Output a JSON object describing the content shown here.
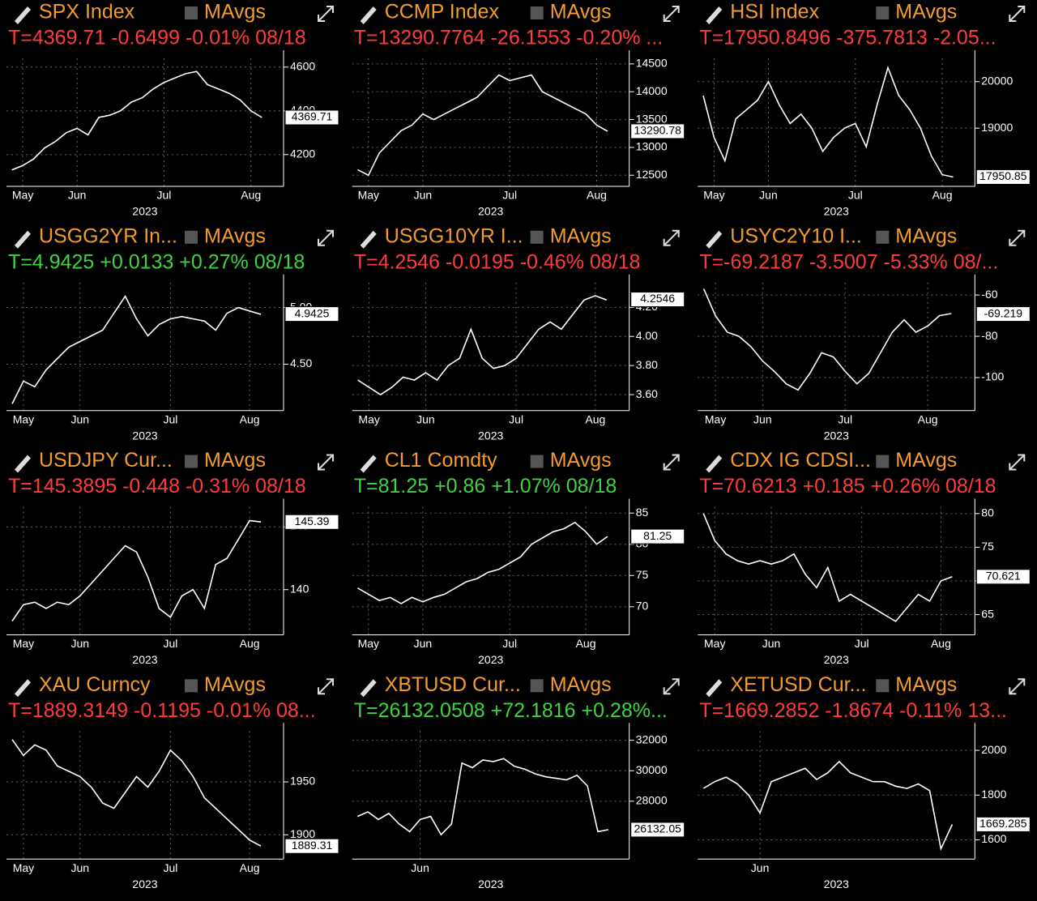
{
  "chart_data": [
    {
      "type": "line",
      "title": "SPX Index",
      "toggle": "MAvgs",
      "subtitle": "T=4369.71 -0.6499 -0.01% 08/18",
      "subtitle_color": "#ff3b3b",
      "color": "#ffffff",
      "grid": true,
      "xlabel": "2023",
      "categories": [
        null,
        "May",
        null,
        null,
        null,
        null,
        "Jun",
        null,
        null,
        null,
        null,
        null,
        null,
        null,
        "Jul",
        null,
        null,
        null,
        null,
        null,
        null,
        null,
        "Aug",
        null
      ],
      "values": [
        4130,
        4150,
        4180,
        4230,
        4260,
        4300,
        4320,
        4290,
        4370,
        4380,
        4400,
        4440,
        4460,
        4500,
        4530,
        4550,
        4570,
        4580,
        4520,
        4500,
        4480,
        4450,
        4400,
        4370
      ],
      "ylim": [
        4055,
        4640
      ],
      "yticks": [
        4200,
        4400,
        4600
      ],
      "last_value": 4369.71
    },
    {
      "type": "line",
      "title": "CCMP Index",
      "toggle": "MAvgs",
      "subtitle": "T=13290.7764 -26.1553 -0.20% ...",
      "subtitle_color": "#ff3b3b",
      "color": "#ffffff",
      "grid": true,
      "xlabel": "2023",
      "categories": [
        null,
        "May",
        null,
        null,
        null,
        null,
        "Jun",
        null,
        null,
        null,
        null,
        null,
        null,
        null,
        "Jul",
        null,
        null,
        null,
        null,
        null,
        null,
        null,
        "Aug",
        null
      ],
      "values": [
        12600,
        12500,
        12900,
        13100,
        13300,
        13400,
        13600,
        13500,
        13600,
        13700,
        13800,
        13900,
        14100,
        14300,
        14200,
        14250,
        14300,
        14000,
        13900,
        13800,
        13700,
        13600,
        13400,
        13290
      ],
      "ylim": [
        12300,
        14600
      ],
      "yticks": [
        12500,
        13000,
        13500,
        14000,
        14500
      ],
      "last_value": 13290.78
    },
    {
      "type": "line",
      "title": "HSI Index",
      "toggle": "MAvgs",
      "subtitle": "T=17950.8496 -375.7813 -2.05...",
      "subtitle_color": "#ff3b3b",
      "color": "#ffffff",
      "grid": true,
      "xlabel": "2023",
      "categories": [
        null,
        "May",
        null,
        null,
        null,
        null,
        "Jun",
        null,
        null,
        null,
        null,
        null,
        null,
        null,
        "Jul",
        null,
        null,
        null,
        null,
        null,
        null,
        null,
        "Aug",
        null
      ],
      "values": [
        19700,
        18800,
        18300,
        19200,
        19400,
        19600,
        20000,
        19500,
        19100,
        19300,
        19000,
        18500,
        18800,
        19000,
        19100,
        18600,
        19500,
        20300,
        19700,
        19400,
        19000,
        18400,
        18000,
        17950
      ],
      "ylim": [
        17750,
        20500
      ],
      "yticks": [
        19000,
        20000
      ],
      "last_value": 17950.85
    },
    {
      "type": "line",
      "title": "USGG2YR In...",
      "toggle": "MAvgs",
      "subtitle": "T=4.9425 +0.0133 +0.27% 08/18",
      "subtitle_color": "#3fd43f",
      "color": "#ffffff",
      "grid": true,
      "xlabel": "2023",
      "categories": [
        null,
        "May",
        null,
        null,
        null,
        null,
        "Jun",
        null,
        null,
        null,
        null,
        null,
        null,
        null,
        "Jul",
        null,
        null,
        null,
        null,
        null,
        null,
        "Aug",
        null
      ],
      "values": [
        4.15,
        4.35,
        4.3,
        4.45,
        4.55,
        4.65,
        4.7,
        4.75,
        4.8,
        4.95,
        5.1,
        4.9,
        4.75,
        4.85,
        4.9,
        4.92,
        4.9,
        4.88,
        4.8,
        4.95,
        5.0,
        4.97,
        4.94
      ],
      "ylim": [
        4.09,
        5.22
      ],
      "yticks": [
        {
          "value": 4.5,
          "label": "4.50"
        },
        {
          "value": 5,
          "label": "5.00"
        }
      ],
      "last_value": 4.9425
    },
    {
      "type": "line",
      "title": "USGG10YR I...",
      "toggle": "MAvgs",
      "subtitle": "T=4.2546 -0.0195 -0.46% 08/18",
      "subtitle_color": "#ff3b3b",
      "color": "#ffffff",
      "grid": true,
      "xlabel": "2023",
      "categories": [
        null,
        "May",
        null,
        null,
        null,
        null,
        "Jun",
        null,
        null,
        null,
        null,
        null,
        null,
        null,
        "Jul",
        null,
        null,
        null,
        null,
        null,
        null,
        "Aug",
        null
      ],
      "values": [
        3.7,
        3.65,
        3.6,
        3.65,
        3.72,
        3.7,
        3.75,
        3.7,
        3.8,
        3.85,
        4.05,
        3.85,
        3.78,
        3.8,
        3.85,
        3.95,
        4.05,
        4.1,
        4.05,
        4.15,
        4.25,
        4.28,
        4.25
      ],
      "ylim": [
        3.49,
        4.37
      ],
      "yticks": [
        {
          "value": 3.6,
          "label": "3.60"
        },
        {
          "value": 3.8,
          "label": "3.80"
        },
        {
          "value": 4,
          "label": "4.00"
        },
        {
          "value": 4.2,
          "label": "4.20"
        }
      ],
      "last_value": 4.2546
    },
    {
      "type": "line",
      "title": "USYC2Y10 I...",
      "toggle": "MAvgs",
      "subtitle": "T=-69.2187 -3.5007 -5.33% 08/...",
      "subtitle_color": "#ff3b3b",
      "color": "#ffffff",
      "grid": true,
      "xlabel": "2023",
      "categories": [
        null,
        "May",
        null,
        null,
        null,
        "Jun",
        null,
        null,
        null,
        null,
        null,
        null,
        "Jul",
        null,
        null,
        null,
        null,
        null,
        null,
        "Aug",
        null,
        null
      ],
      "values": [
        -57,
        -70,
        -78,
        -80,
        -85,
        -92,
        -97,
        -103,
        -106,
        -98,
        -88,
        -90,
        -97,
        -103,
        -98,
        -88,
        -78,
        -72,
        -78,
        -75,
        -70,
        -69
      ],
      "ylim": [
        -116,
        -54
      ],
      "yticks": [
        -100,
        -80,
        -60
      ],
      "last_value": -69.219
    },
    {
      "type": "line",
      "title": "USDJPY Cur...",
      "toggle": "MAvgs",
      "subtitle": "T=145.3895 -0.448 -0.31% 08/18",
      "subtitle_color": "#ff3b3b",
      "color": "#ffffff",
      "grid": true,
      "xlabel": "2023",
      "categories": [
        null,
        "May",
        null,
        null,
        null,
        null,
        "Jun",
        null,
        null,
        null,
        null,
        null,
        null,
        null,
        "Jul",
        null,
        null,
        null,
        null,
        null,
        null,
        "Aug",
        null
      ],
      "values": [
        137.5,
        138.8,
        139,
        138.5,
        139,
        138.8,
        139.5,
        140.5,
        141.5,
        142.5,
        143.5,
        143,
        141,
        138.5,
        137.8,
        139.5,
        140,
        138.5,
        142,
        142.5,
        144,
        145.5,
        145.39
      ],
      "ylim": [
        136.4,
        146.6
      ],
      "yticks": [
        140,
        145
      ],
      "last_value": 145.39
    },
    {
      "type": "line",
      "title": "CL1 Comdty",
      "toggle": "MAvgs",
      "subtitle": "T=81.25 +0.86 +1.07% 08/18",
      "subtitle_color": "#3fd43f",
      "color": "#ffffff",
      "grid": true,
      "xlabel": "2023",
      "categories": [
        null,
        "May",
        null,
        null,
        null,
        null,
        "Jun",
        null,
        null,
        null,
        null,
        null,
        null,
        null,
        "Jul",
        null,
        null,
        null,
        null,
        null,
        null,
        "Aug",
        null,
        null
      ],
      "values": [
        73,
        72,
        71,
        71.5,
        70.5,
        71.5,
        70.8,
        71.5,
        72,
        73,
        74,
        74.5,
        75.5,
        76,
        77,
        78,
        80,
        81,
        82,
        82.5,
        83.5,
        82,
        80,
        81.25
      ],
      "ylim": [
        65.5,
        86
      ],
      "yticks": [
        70,
        75,
        80,
        85
      ],
      "last_value": 81.25
    },
    {
      "type": "line",
      "title": "CDX IG CDSI...",
      "toggle": "MAvgs",
      "subtitle": "T=70.6213 +0.185 +0.26% 08/18",
      "subtitle_color": "#ff3b3b",
      "color": "#ffffff",
      "grid": true,
      "xlabel": "2023",
      "categories": [
        null,
        "May",
        null,
        null,
        null,
        null,
        "Jun",
        null,
        null,
        null,
        null,
        null,
        null,
        null,
        "Jul",
        null,
        null,
        null,
        null,
        null,
        null,
        "Aug",
        null
      ],
      "values": [
        80,
        76,
        74,
        73,
        72.5,
        73,
        72.5,
        73,
        74,
        71,
        69,
        72,
        67,
        68,
        67,
        66,
        65,
        64,
        66,
        68,
        67,
        70,
        70.62
      ],
      "ylim": [
        62,
        81
      ],
      "yticks": [
        65,
        70,
        75,
        80
      ],
      "last_value": 70.621
    },
    {
      "type": "line",
      "title": "XAU Curncy",
      "toggle": "MAvgs",
      "subtitle": "T=1889.3149 -0.1195 -0.01% 08...",
      "subtitle_color": "#ff3b3b",
      "color": "#ffffff",
      "grid": true,
      "xlabel": "2023",
      "categories": [
        null,
        "May",
        null,
        null,
        null,
        null,
        "Jun",
        null,
        null,
        null,
        null,
        null,
        null,
        null,
        "Jul",
        null,
        null,
        null,
        null,
        null,
        null,
        "Aug",
        null
      ],
      "values": [
        1990,
        1975,
        1985,
        1980,
        1965,
        1960,
        1955,
        1945,
        1930,
        1925,
        1940,
        1955,
        1945,
        1960,
        1980,
        1970,
        1955,
        1935,
        1925,
        1915,
        1905,
        1895,
        1889.31
      ],
      "ylim": [
        1877,
        1998
      ],
      "yticks": [
        1900,
        1950
      ],
      "last_value": 1889.31
    },
    {
      "type": "line",
      "title": "XBTUSD Cur...",
      "toggle": "MAvgs",
      "subtitle": "T=26132.0508 +72.1816 +0.28%...",
      "subtitle_color": "#3fd43f",
      "color": "#ffffff",
      "grid": true,
      "xlabel": "2023",
      "categories": [
        null,
        null,
        null,
        null,
        null,
        null,
        "Jun",
        null,
        null,
        null,
        null,
        null,
        null,
        null,
        null,
        null,
        null,
        null,
        null,
        null,
        null,
        null,
        null,
        null,
        null
      ],
      "values": [
        27000,
        27300,
        26800,
        27200,
        26500,
        26000,
        26800,
        27000,
        25800,
        26500,
        30500,
        30200,
        30700,
        30600,
        30800,
        30300,
        30100,
        29800,
        29600,
        29500,
        29400,
        29700,
        29000,
        26000,
        26132
      ],
      "ylim": [
        24200,
        32600
      ],
      "yticks": [
        28000,
        30000,
        32000
      ],
      "last_value": 26132.05
    },
    {
      "type": "line",
      "title": "XETUSD Cur...",
      "toggle": "MAvgs",
      "subtitle": "T=1669.2852 -1.8674 -0.11% 13...",
      "subtitle_color": "#ff3b3b",
      "color": "#ffffff",
      "grid": true,
      "xlabel": "2023",
      "categories": [
        null,
        null,
        null,
        null,
        null,
        "Jun",
        null,
        null,
        null,
        null,
        null,
        null,
        null,
        null,
        null,
        null,
        null,
        null,
        null,
        null,
        null,
        null,
        null
      ],
      "values": [
        1830,
        1860,
        1880,
        1850,
        1800,
        1720,
        1860,
        1880,
        1900,
        1920,
        1870,
        1900,
        1950,
        1900,
        1880,
        1860,
        1860,
        1840,
        1830,
        1850,
        1820,
        1560,
        1669
      ],
      "ylim": [
        1514,
        2086
      ],
      "yticks": [
        1600,
        1800,
        2000
      ],
      "last_value": 1669.285
    }
  ]
}
